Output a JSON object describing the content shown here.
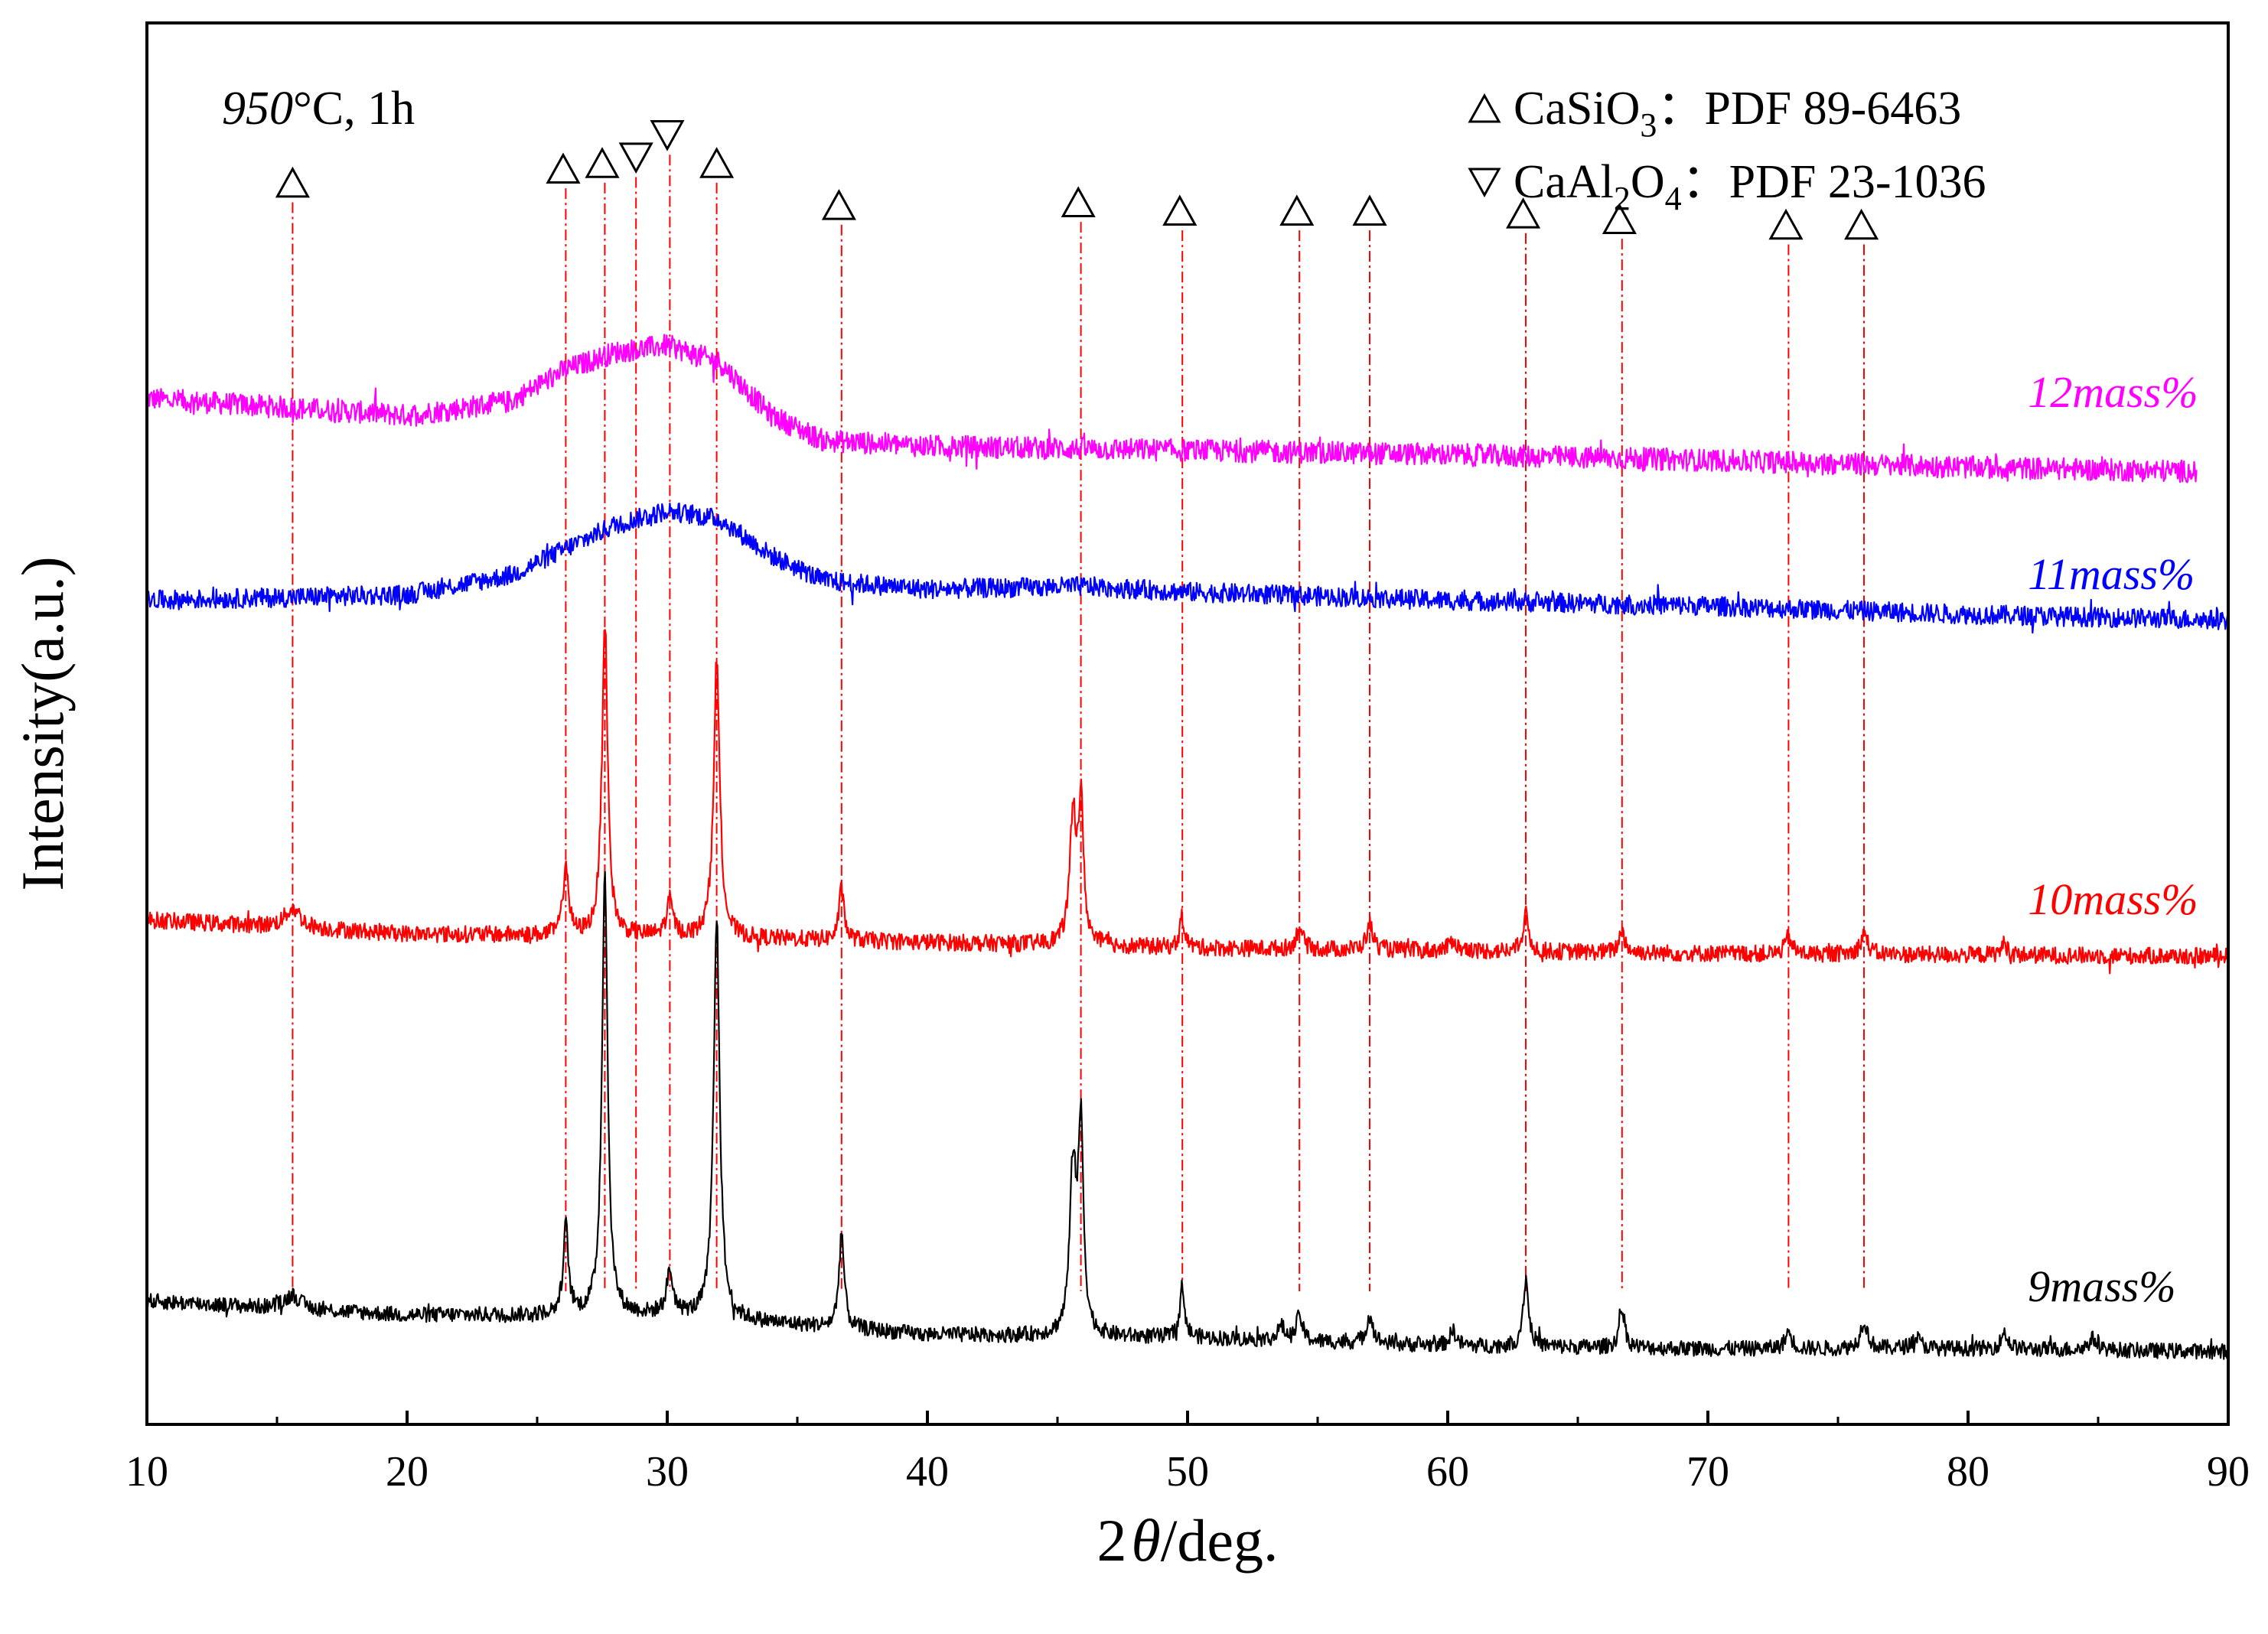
{
  "chart_data": {
    "type": "line",
    "title": "",
    "annotation": {
      "temp": "950",
      "rest": "°C, 1h"
    },
    "xlabel": {
      "pre": "2",
      "theta": "θ",
      "post": "/deg."
    },
    "ylabel": "Intensity(a.u.)",
    "xlim": [
      10,
      90
    ],
    "ylim": [
      0,
      100
    ],
    "xticks": [
      10,
      20,
      30,
      40,
      50,
      60,
      70,
      80,
      90
    ],
    "grid": false,
    "legend": {
      "position": "top-right",
      "entries": [
        {
          "marker": "triangle-up",
          "formula": [
            [
              "CaSiO",
              false
            ],
            [
              "3",
              true
            ]
          ],
          "sep": "：",
          "ref": "PDF 89-6463"
        },
        {
          "marker": "triangle-down",
          "formula": [
            [
              "CaAl",
              false
            ],
            [
              "2",
              true
            ],
            [
              "O",
              false
            ],
            [
              "4",
              true
            ]
          ],
          "sep": "：",
          "ref": "PDF 23-1036"
        }
      ]
    },
    "reference_lines": [
      15.6,
      26.1,
      27.6,
      28.8,
      30.1,
      31.9,
      36.7,
      45.9,
      49.8,
      54.3,
      57.0,
      63.0,
      66.7,
      73.1,
      76.0
    ],
    "markers": [
      {
        "x": 15.6,
        "type": "triangle-up",
        "y": 88.6
      },
      {
        "x": 26.0,
        "type": "triangle-up",
        "y": 89.6
      },
      {
        "x": 27.5,
        "type": "triangle-up",
        "y": 90.0
      },
      {
        "x": 28.8,
        "type": "triangle-down",
        "y": 90.4
      },
      {
        "x": 30.0,
        "type": "triangle-down",
        "y": 92.0
      },
      {
        "x": 31.9,
        "type": "triangle-up",
        "y": 90.0
      },
      {
        "x": 36.6,
        "type": "triangle-up",
        "y": 87.0
      },
      {
        "x": 45.8,
        "type": "triangle-up",
        "y": 87.2
      },
      {
        "x": 49.7,
        "type": "triangle-up",
        "y": 86.6
      },
      {
        "x": 54.2,
        "type": "triangle-up",
        "y": 86.6
      },
      {
        "x": 57.0,
        "type": "triangle-up",
        "y": 86.6
      },
      {
        "x": 62.9,
        "type": "triangle-up",
        "y": 86.4
      },
      {
        "x": 66.6,
        "type": "triangle-up",
        "y": 86.0
      },
      {
        "x": 73.0,
        "type": "triangle-up",
        "y": 85.6
      },
      {
        "x": 75.9,
        "type": "triangle-up",
        "y": 85.6
      }
    ],
    "series": [
      {
        "name": "12mass%",
        "color": "#ff00ff",
        "x_end": 88.8,
        "baseline": [
          [
            10,
            73.2
          ],
          [
            20,
            72.0
          ],
          [
            24,
            73.0
          ],
          [
            26,
            75.2
          ],
          [
            28,
            76.5
          ],
          [
            30,
            77.0
          ],
          [
            32,
            75.8
          ],
          [
            34,
            72.0
          ],
          [
            36,
            70.2
          ],
          [
            40,
            69.8
          ],
          [
            50,
            69.5
          ],
          [
            60,
            69.2
          ],
          [
            70,
            68.8
          ],
          [
            80,
            68.3
          ],
          [
            88.8,
            68.0
          ]
        ],
        "peaks": [],
        "noise": 0.8
      },
      {
        "name": "11mass%",
        "color": "#0000ff",
        "x_end": 90,
        "baseline": [
          [
            10,
            58.8
          ],
          [
            20,
            59.2
          ],
          [
            24,
            60.6
          ],
          [
            26,
            62.4
          ],
          [
            28,
            64.2
          ],
          [
            30,
            65.2
          ],
          [
            32,
            64.6
          ],
          [
            34,
            62.0
          ],
          [
            36,
            60.2
          ],
          [
            40,
            59.6
          ],
          [
            46,
            59.8
          ],
          [
            50,
            59.4
          ],
          [
            60,
            58.8
          ],
          [
            70,
            58.4
          ],
          [
            80,
            57.8
          ],
          [
            90,
            57.4
          ]
        ],
        "peaks": [],
        "noise": 0.7
      },
      {
        "name": "10mass%",
        "color": "#ff0000",
        "x_end": 90,
        "baseline": [
          [
            10,
            36.0
          ],
          [
            20,
            35.0
          ],
          [
            30,
            34.8
          ],
          [
            40,
            34.4
          ],
          [
            50,
            34.0
          ],
          [
            60,
            33.8
          ],
          [
            70,
            33.6
          ],
          [
            80,
            33.5
          ],
          [
            90,
            33.4
          ]
        ],
        "peaks": [
          [
            15.6,
            1.4,
            0.35
          ],
          [
            26.1,
            5.2,
            0.12
          ],
          [
            27.6,
            22.6,
            0.13
          ],
          [
            30.1,
            2.5,
            0.15
          ],
          [
            31.9,
            19.8,
            0.14
          ],
          [
            36.7,
            3.6,
            0.12
          ],
          [
            45.6,
            8.9,
            0.15
          ],
          [
            45.9,
            9.6,
            0.12
          ],
          [
            49.8,
            2.2,
            0.11
          ],
          [
            54.3,
            1.6,
            0.14
          ],
          [
            57.0,
            1.8,
            0.15
          ],
          [
            60.2,
            0.8,
            0.15
          ],
          [
            63.0,
            2.6,
            0.13
          ],
          [
            66.7,
            1.6,
            0.13
          ],
          [
            73.1,
            1.2,
            0.15
          ],
          [
            76.0,
            1.5,
            0.16
          ],
          [
            81.4,
            0.8,
            0.15
          ]
        ],
        "noise": 0.6
      },
      {
        "name": "9mass%",
        "color": "#000000",
        "x_end": 90,
        "baseline": [
          [
            10,
            8.8
          ],
          [
            20,
            7.8
          ],
          [
            30,
            7.8
          ],
          [
            40,
            6.4
          ],
          [
            50,
            6.2
          ],
          [
            60,
            5.6
          ],
          [
            70,
            5.4
          ],
          [
            80,
            5.4
          ],
          [
            90,
            5.2
          ]
        ],
        "peaks": [
          [
            15.6,
            1.0,
            0.35
          ],
          [
            26.1,
            6.2,
            0.12
          ],
          [
            27.6,
            31.6,
            0.13
          ],
          [
            30.1,
            3.0,
            0.15
          ],
          [
            31.9,
            28.5,
            0.14
          ],
          [
            36.7,
            6.8,
            0.12
          ],
          [
            45.6,
            11.8,
            0.15
          ],
          [
            45.9,
            14.2,
            0.12
          ],
          [
            49.8,
            3.6,
            0.11
          ],
          [
            53.6,
            1.0,
            0.15
          ],
          [
            54.3,
            1.8,
            0.14
          ],
          [
            57.0,
            2.0,
            0.15
          ],
          [
            60.2,
            1.1,
            0.15
          ],
          [
            63.0,
            4.8,
            0.13
          ],
          [
            66.7,
            2.8,
            0.13
          ],
          [
            73.1,
            1.2,
            0.15
          ],
          [
            76.0,
            2.0,
            0.16
          ],
          [
            78.0,
            0.8,
            0.2
          ],
          [
            81.4,
            1.2,
            0.15
          ],
          [
            84.8,
            0.8,
            0.2
          ]
        ],
        "noise": 0.55
      }
    ],
    "series_labels": [
      {
        "text": "12mass%",
        "color": "#ff00ff",
        "x": 82.3,
        "y": 72.6
      },
      {
        "text": "11mass%",
        "color": "#0000ff",
        "x": 82.3,
        "y": 59.6
      },
      {
        "text": "10mass%",
        "color": "#ff0000",
        "x": 82.3,
        "y": 36.4
      },
      {
        "text": "9mass%",
        "color": "#000000",
        "x": 82.3,
        "y": 8.8
      }
    ]
  }
}
